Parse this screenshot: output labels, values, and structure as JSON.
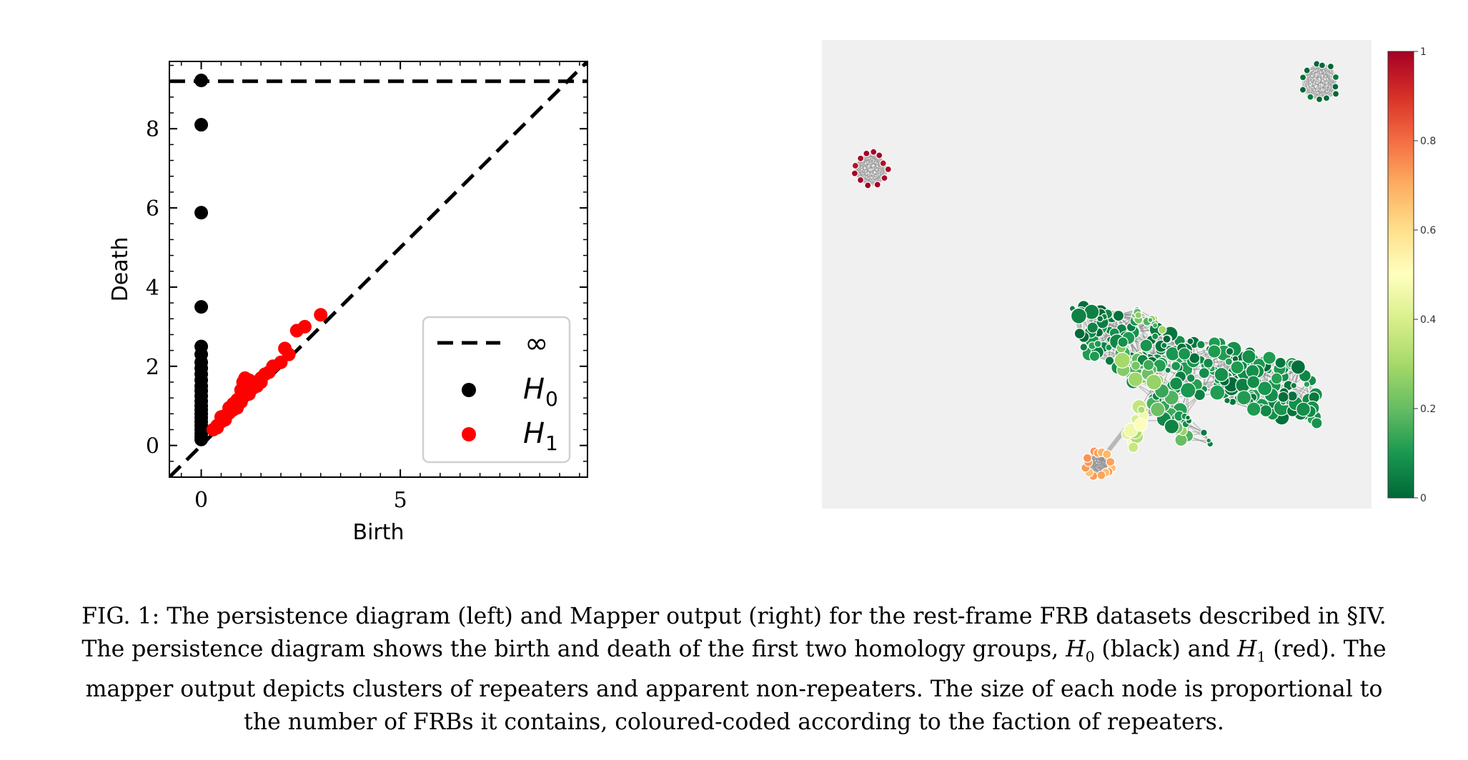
{
  "chart_data": [
    {
      "type": "scatter",
      "panel": "left",
      "title": "",
      "xlabel": "Birth",
      "ylabel": "Death",
      "xlim": [
        -0.8,
        9.7
      ],
      "ylim": [
        -0.8,
        9.7
      ],
      "x_ticks": [
        0,
        5
      ],
      "y_ticks": [
        0,
        2,
        4,
        6,
        8
      ],
      "x_tick_labels": [
        "0",
        "5"
      ],
      "y_tick_labels": [
        "0",
        "2",
        "4",
        "6",
        "8"
      ],
      "grid": false,
      "legend_position": "lower-right",
      "infinity_level": 9.2,
      "legend": [
        {
          "label": "∞",
          "style": "dashed-line",
          "color": "#000000"
        },
        {
          "label": "H",
          "sub": "0",
          "style": "dot",
          "color": "#000000"
        },
        {
          "label": "H",
          "sub": "1",
          "style": "dot",
          "color": "#ff0000"
        }
      ],
      "series": [
        {
          "name": "H0",
          "color": "#000000",
          "points": [
            [
              0,
              9.22
            ],
            [
              0,
              8.1
            ],
            [
              0,
              5.88
            ],
            [
              0,
              3.5
            ],
            [
              0,
              2.5
            ],
            [
              0,
              2.3
            ],
            [
              0,
              2.1
            ],
            [
              0,
              1.95
            ],
            [
              0,
              1.8
            ],
            [
              0,
              1.65
            ],
            [
              0,
              1.5
            ],
            [
              0,
              1.38
            ],
            [
              0,
              1.25
            ],
            [
              0,
              1.12
            ],
            [
              0,
              1.0
            ],
            [
              0,
              0.9
            ],
            [
              0,
              0.8
            ],
            [
              0,
              0.7
            ],
            [
              0,
              0.6
            ],
            [
              0,
              0.5
            ],
            [
              0,
              0.4
            ],
            [
              0,
              0.3
            ],
            [
              0,
              0.22
            ],
            [
              0,
              0.15
            ]
          ]
        },
        {
          "name": "H1",
          "color": "#ff0000",
          "points": [
            [
              0.3,
              0.4
            ],
            [
              0.4,
              0.5
            ],
            [
              0.5,
              0.6
            ],
            [
              0.5,
              0.72
            ],
            [
              0.6,
              0.75
            ],
            [
              0.7,
              0.82
            ],
            [
              0.7,
              0.95
            ],
            [
              0.8,
              0.9
            ],
            [
              0.8,
              1.05
            ],
            [
              0.9,
              1.0
            ],
            [
              0.9,
              1.15
            ],
            [
              1.0,
              1.1
            ],
            [
              1.0,
              1.25
            ],
            [
              1.0,
              1.4
            ],
            [
              1.05,
              1.6
            ],
            [
              1.1,
              1.55
            ],
            [
              1.1,
              1.7
            ],
            [
              1.2,
              1.3
            ],
            [
              1.2,
              1.5
            ],
            [
              1.2,
              1.65
            ],
            [
              1.3,
              1.45
            ],
            [
              1.3,
              1.6
            ],
            [
              1.4,
              1.55
            ],
            [
              1.5,
              1.7
            ],
            [
              1.5,
              1.6
            ],
            [
              1.6,
              1.8
            ],
            [
              1.7,
              1.85
            ],
            [
              1.8,
              2.0
            ],
            [
              2.0,
              2.1
            ],
            [
              2.1,
              2.45
            ],
            [
              2.2,
              2.3
            ],
            [
              2.4,
              2.9
            ],
            [
              2.6,
              3.0
            ],
            [
              3.0,
              3.3
            ],
            [
              0.4,
              0.45
            ],
            [
              0.6,
              0.65
            ],
            [
              0.9,
              0.95
            ],
            [
              1.4,
              1.5
            ]
          ]
        }
      ]
    },
    {
      "type": "network",
      "panel": "right",
      "title": "",
      "colorbar": {
        "ticks": [
          0,
          0.2,
          0.4,
          0.6,
          0.8,
          1
        ],
        "tick_labels": [
          "0",
          "0.2",
          "0.4",
          "0.6",
          "0.8",
          "1"
        ],
        "colors": [
          "#006837",
          "#1a9850",
          "#66bd63",
          "#a6d96a",
          "#d9ef8b",
          "#ffffbf",
          "#fee08b",
          "#fdae61",
          "#f46d43",
          "#d73027",
          "#a50026"
        ]
      },
      "clusters": [
        {
          "description_value": 1.0,
          "nodes": 12
        },
        {
          "description_value": 0.0,
          "nodes": 12
        },
        {
          "description_value": 0.7,
          "nodes": 14
        },
        {
          "description_value": 0.05,
          "nodes": 400
        }
      ]
    }
  ],
  "caption": {
    "lines": [
      "FIG. 1: The persistence diagram (left) and Mapper output (right) for the rest-frame FRB datasets described in §IV.",
      "The persistence diagram shows the birth and death of the first two homology groups, H0 (black) and H1 (red). The",
      "mapper output depicts clusters of repeaters and apparent non-repeaters. The size of each node is proportional to",
      "the number of FRBs it contains, coloured-coded according to the faction of repeaters."
    ]
  }
}
